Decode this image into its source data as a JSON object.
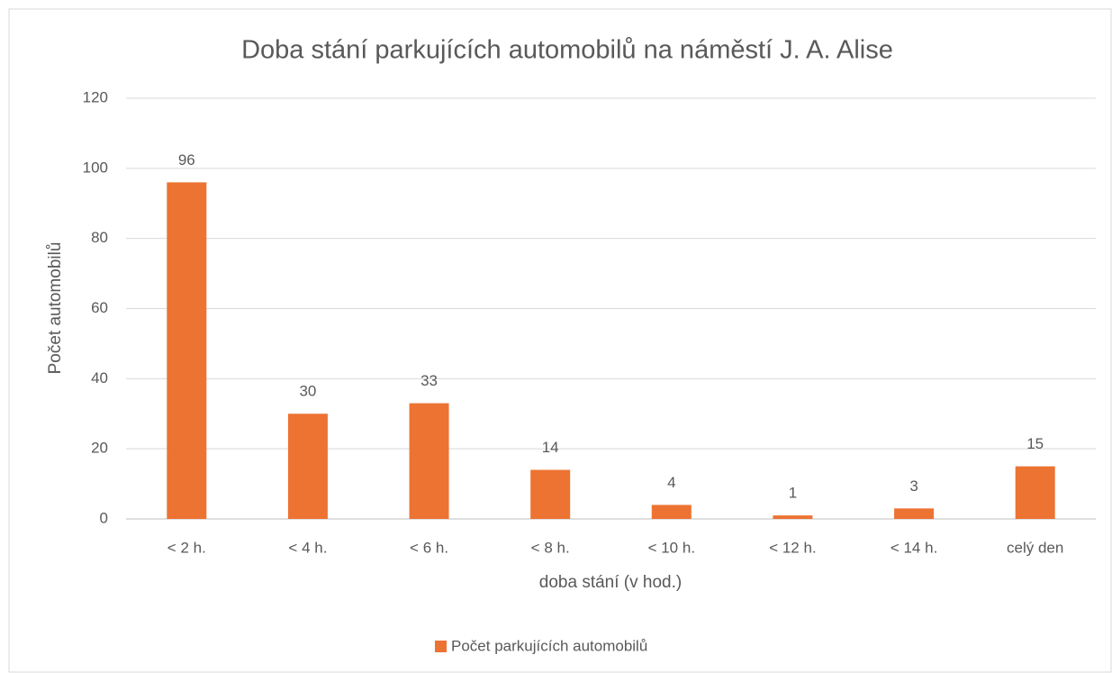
{
  "chart_data": {
    "type": "bar",
    "title": "Doba stání parkujících automobilů na náměstí J. A. Alise",
    "x_label": "doba stání (v hod.)",
    "y_label": "Počet automobilů",
    "categories": [
      "< 2 h.",
      "< 4 h.",
      "< 6 h.",
      "< 8 h.",
      "< 10 h.",
      "< 12 h.",
      "< 14 h.",
      "celý den"
    ],
    "series": [
      {
        "name": "Počet parkujících automobilů",
        "color": "#ed7332",
        "values": [
          96,
          30,
          33,
          14,
          4,
          1,
          3,
          15
        ]
      }
    ],
    "ylim": [
      0,
      120
    ],
    "yticks": [
      0,
      20,
      40,
      60,
      80,
      100,
      120
    ],
    "grid": true,
    "legend": "bottom",
    "data_labels": true
  }
}
